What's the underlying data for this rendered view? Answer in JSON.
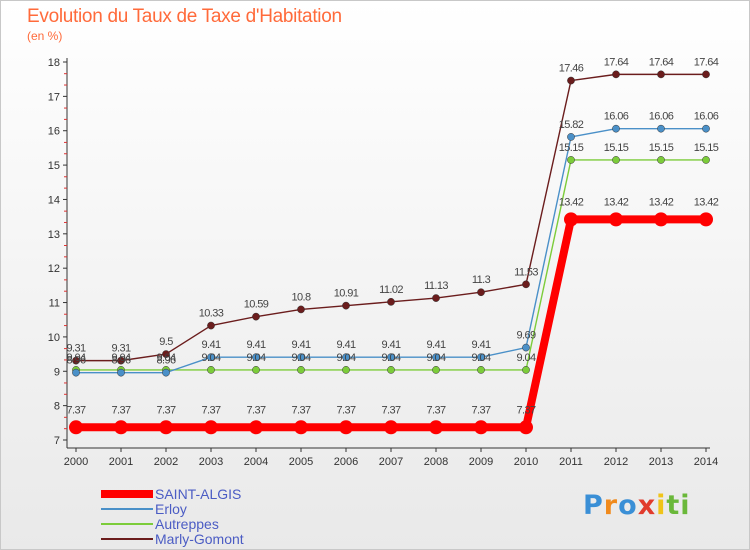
{
  "title": "Evolution du Taux de Taxe d'Habitation",
  "subtitle": "(en %)",
  "logo": {
    "letters": [
      "P",
      "r",
      "o",
      "x",
      "i",
      "t",
      "i"
    ],
    "colors": [
      "#3a8fd6",
      "#f08a1c",
      "#3a8fd6",
      "#e13b2c",
      "#f0c419",
      "#6ab83a",
      "#6ab83a"
    ]
  },
  "chart_data": {
    "type": "line",
    "title": "Evolution du Taux de Taxe d'Habitation",
    "ylabel": "(en %)",
    "xlabel": "",
    "categories": [
      "2000",
      "2001",
      "2002",
      "2003",
      "2004",
      "2005",
      "2006",
      "2007",
      "2008",
      "2009",
      "2010",
      "2011",
      "2012",
      "2013",
      "2014"
    ],
    "ylim": [
      7,
      18
    ],
    "yticks": [
      "7",
      "8",
      "9",
      "10",
      "11",
      "12",
      "13",
      "14",
      "15",
      "16",
      "17",
      "18"
    ],
    "grid": false,
    "legend": "bottom-left",
    "series": [
      {
        "name": "SAINT-ALGIS",
        "color": "#ff0000",
        "values": [
          7.37,
          7.37,
          7.37,
          7.37,
          7.37,
          7.37,
          7.37,
          7.37,
          7.37,
          7.37,
          7.37,
          13.42,
          13.42,
          13.42,
          13.42
        ],
        "labels": [
          "7.37",
          "7.37",
          "7.37",
          "7.37",
          "7.37",
          "7.37",
          "7.37",
          "7.37",
          "7.37",
          "7.37",
          "7.37",
          "13.42",
          "13.42",
          "13.42",
          "13.42"
        ]
      },
      {
        "name": "Erloy",
        "color": "#4a90c8",
        "values": [
          8.96,
          8.96,
          8.96,
          9.41,
          9.41,
          9.41,
          9.41,
          9.41,
          9.41,
          9.41,
          9.69,
          15.82,
          16.06,
          16.06,
          16.06
        ],
        "labels": [
          "8.96",
          "8.96",
          "8.96",
          "9.41",
          "9.41",
          "9.41",
          "9.41",
          "9.41",
          "9.41",
          "9.41",
          "9.69",
          "15.82",
          "16.06",
          "16.06",
          "16.06"
        ]
      },
      {
        "name": "Autreppes",
        "color": "#7ccc3a",
        "values": [
          9.04,
          9.04,
          9.04,
          9.04,
          9.04,
          9.04,
          9.04,
          9.04,
          9.04,
          9.04,
          9.04,
          15.15,
          15.15,
          15.15,
          15.15
        ],
        "labels": [
          "9.04",
          "9.04",
          "9.04",
          "9.04",
          "9.04",
          "9.04",
          "9.04",
          "9.04",
          "9.04",
          "9.04",
          "9.04",
          "15.15",
          "15.15",
          "15.15",
          "15.15"
        ]
      },
      {
        "name": "Marly-Gomont",
        "color": "#6b1d1d",
        "values": [
          9.31,
          9.31,
          9.5,
          10.33,
          10.59,
          10.8,
          10.91,
          11.02,
          11.13,
          11.3,
          11.53,
          17.46,
          17.64,
          17.64,
          17.64
        ],
        "labels": [
          "9.31",
          "9.31",
          "9.5",
          "10.33",
          "10.59",
          "10.8",
          "10.91",
          "11.02",
          "11.13",
          "11.3",
          "11.53",
          "17.46",
          "17.64",
          "17.64",
          "17.64"
        ]
      }
    ]
  }
}
